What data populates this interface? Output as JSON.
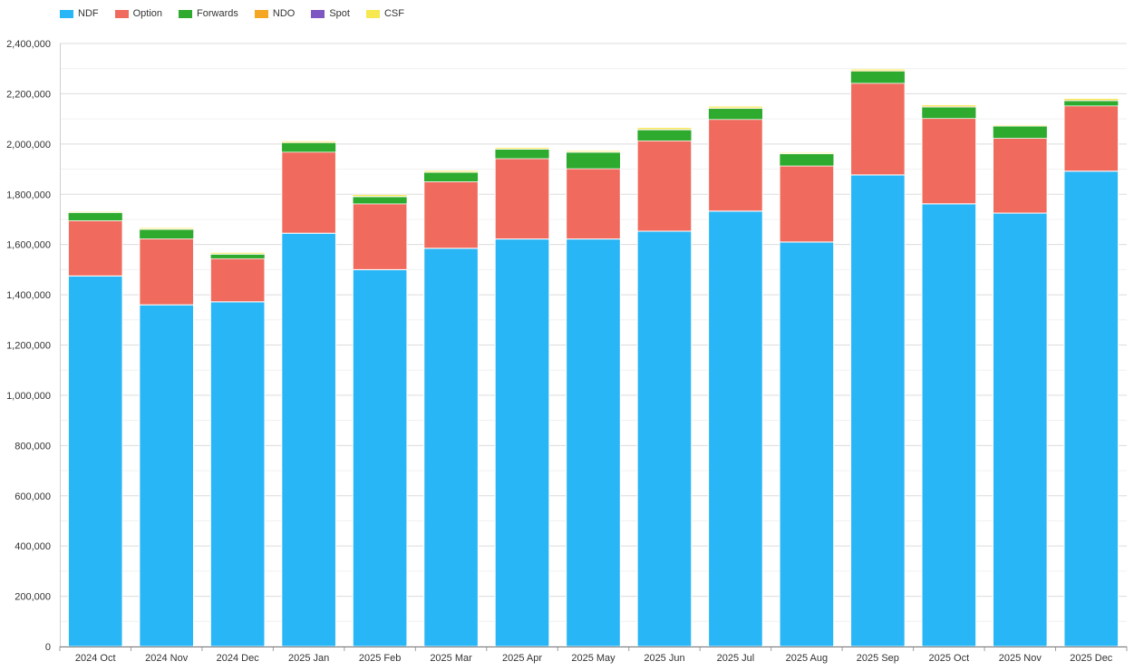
{
  "chart_data": {
    "type": "bar",
    "stacked": true,
    "title": "",
    "xlabel": "",
    "ylabel": "",
    "ylim": [
      0,
      2400000
    ],
    "yticks": [
      0,
      200000,
      400000,
      600000,
      800000,
      1000000,
      1200000,
      1400000,
      1600000,
      1800000,
      2000000,
      2200000,
      2400000
    ],
    "ytick_labels": [
      "0",
      "200,000",
      "400,000",
      "600,000",
      "800,000",
      "1,000,000",
      "1,200,000",
      "1,400,000",
      "1,600,000",
      "1,800,000",
      "2,000,000",
      "2,200,000",
      "2,400,000"
    ],
    "grid": true,
    "legend_position": "top-left",
    "categories": [
      "2024 Oct",
      "2024 Nov",
      "2024 Dec",
      "2025 Jan",
      "2025 Feb",
      "2025 Mar",
      "2025 Apr",
      "2025 May",
      "2025 Jun",
      "2025 Jul",
      "2025 Aug",
      "2025 Sep",
      "2025 Oct",
      "2025 Nov",
      "2025 Dec"
    ],
    "series": [
      {
        "name": "NDF",
        "color": "#29b6f6",
        "values": [
          1475000,
          1360000,
          1372000,
          1645000,
          1500000,
          1585000,
          1622000,
          1622000,
          1653000,
          1733000,
          1610000,
          1877000,
          1762000,
          1725000,
          1892000
        ]
      },
      {
        "name": "Option",
        "color": "#f06b5d",
        "values": [
          220000,
          263000,
          172000,
          323000,
          262000,
          265000,
          320000,
          280000,
          360000,
          365000,
          303000,
          365000,
          340000,
          298000,
          260000
        ]
      },
      {
        "name": "Forwards",
        "color": "#2eab2e",
        "values": [
          32000,
          37000,
          17000,
          37000,
          28000,
          37000,
          37000,
          65000,
          43000,
          43000,
          48000,
          48000,
          45000,
          48000,
          20000
        ]
      },
      {
        "name": "NDO",
        "color": "#f5a623",
        "values": [
          2000,
          2000,
          2000,
          3000,
          2000,
          2000,
          2000,
          2000,
          3000,
          3000,
          2000,
          3000,
          3000,
          2000,
          3000
        ]
      },
      {
        "name": "Spot",
        "color": "#7e57c2",
        "values": [
          0,
          0,
          0,
          0,
          0,
          0,
          0,
          0,
          0,
          0,
          0,
          0,
          0,
          0,
          0
        ]
      },
      {
        "name": "CSF",
        "color": "#f7e84f",
        "values": [
          3000,
          4000,
          5000,
          4000,
          6000,
          5000,
          5000,
          4000,
          6000,
          6000,
          3000,
          5000,
          5000,
          3000,
          6000
        ]
      }
    ]
  }
}
